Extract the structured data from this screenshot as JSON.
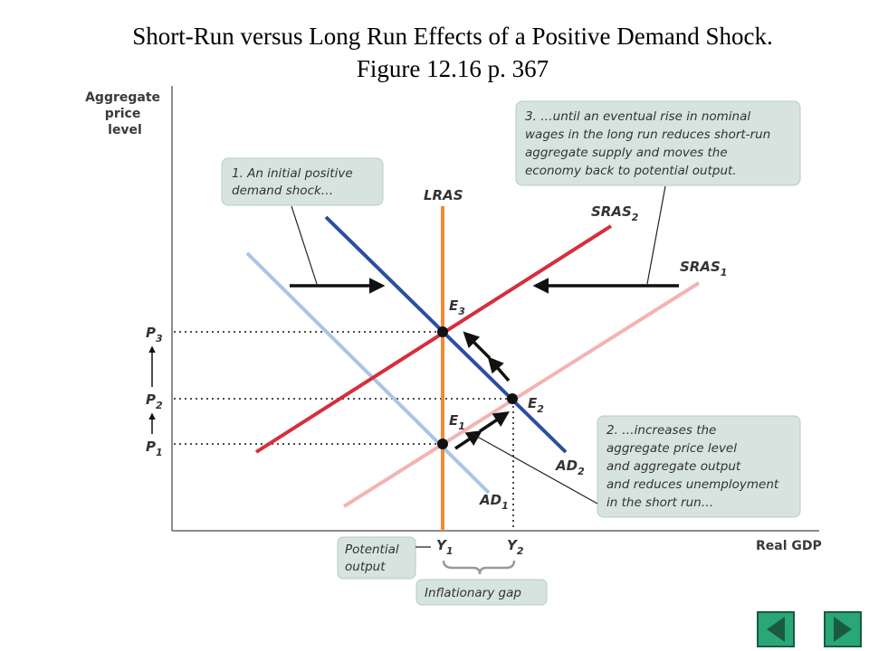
{
  "title": {
    "line1": "Short-Run versus Long Run Effects of a Positive Demand Shock.",
    "line2": "Figure 12.16 p. 367"
  },
  "axes": {
    "y_label": [
      "Aggregate",
      "price",
      "level"
    ],
    "x_label": "Real GDP"
  },
  "curves": {
    "lras": "LRAS",
    "sras2": {
      "base": "SRAS",
      "sub": "2"
    },
    "sras1": {
      "base": "SRAS",
      "sub": "1"
    },
    "ad2": {
      "base": "AD",
      "sub": "2"
    },
    "ad1": {
      "base": "AD",
      "sub": "1"
    }
  },
  "points": {
    "e1": {
      "base": "E",
      "sub": "1"
    },
    "e2": {
      "base": "E",
      "sub": "2"
    },
    "e3": {
      "base": "E",
      "sub": "3"
    }
  },
  "price_ticks": {
    "p1": {
      "base": "P",
      "sub": "1"
    },
    "p2": {
      "base": "P",
      "sub": "2"
    },
    "p3": {
      "base": "P",
      "sub": "3"
    }
  },
  "output_ticks": {
    "y1": {
      "base": "Y",
      "sub": "1"
    },
    "y2": {
      "base": "Y",
      "sub": "2"
    }
  },
  "notes": {
    "note1": [
      "1. An initial positive",
      "demand shock…"
    ],
    "note2": [
      "2. …increases the",
      "aggregate price level",
      "and aggregate output",
      "and reduces unemployment",
      "in the short run…"
    ],
    "note3": [
      "3. …until an eventual rise in nominal",
      "wages in the long run reduces short-run",
      "aggregate supply and moves the",
      "economy back to potential output."
    ],
    "potential_output": [
      "Potential",
      "output"
    ],
    "inflationary_gap": "Inflationary gap"
  },
  "colors": {
    "lras": "#f08a35",
    "sras2": "#d72e3a",
    "sras1": "#f4b3b3",
    "ad2": "#2b4ea3",
    "ad1": "#a9c4e6",
    "note_bg": "#d6e3df",
    "nav_button": "#2aa776"
  },
  "navigation": {
    "back_icon": "triangle-left-icon",
    "forward_icon": "triangle-right-icon"
  }
}
